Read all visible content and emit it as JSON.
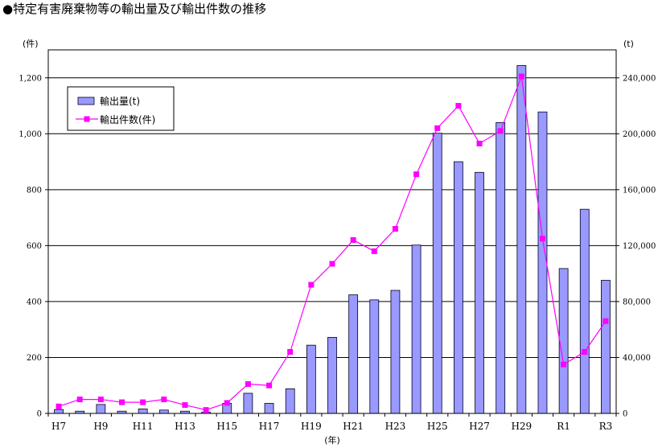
{
  "title": "●特定有害廃棄物等の輸出量及び輸出件数の推移",
  "chart_data": {
    "type": "bar+line",
    "categories": [
      "H7",
      "H8",
      "H9",
      "H10",
      "H11",
      "H12",
      "H13",
      "H14",
      "H15",
      "H16",
      "H17",
      "H18",
      "H19",
      "H20",
      "H21",
      "H22",
      "H23",
      "H24",
      "H25",
      "H26",
      "H27",
      "H28",
      "H29",
      "H30",
      "R1",
      "R2",
      "R3"
    ],
    "x_tick_labels": [
      "H7",
      "H9",
      "H11",
      "H13",
      "H15",
      "H17",
      "H19",
      "H21",
      "H23",
      "H25",
      "H27",
      "H29",
      "R1",
      "R3"
    ],
    "x_unit": "(年)",
    "y_left": {
      "unit": "(件)",
      "lim": [
        0,
        1300
      ],
      "ticks": [
        "0",
        "200",
        "400",
        "600",
        "800",
        "1,000",
        "1,200"
      ]
    },
    "y_right": {
      "unit": "(t)",
      "lim": [
        0,
        260000
      ],
      "ticks": [
        "0",
        "40,000",
        "80,000",
        "120,000",
        "160,000",
        "200,000",
        "240,000"
      ]
    },
    "grid": true,
    "legend_position": "top-left",
    "series": [
      {
        "name": "輸出量(t)",
        "type": "bar",
        "axis": "left",
        "color": "#9999ff",
        "values": [
          14,
          8,
          32,
          8,
          16,
          12,
          8,
          4,
          36,
          72,
          36,
          88,
          244,
          272,
          424,
          406,
          440,
          602,
          1002,
          900,
          862,
          1040,
          1244,
          1078,
          518,
          730,
          476
        ]
      },
      {
        "name": "輸出件数(件)",
        "type": "line",
        "axis": "right",
        "color": "#ff00ff",
        "values": [
          5000,
          10000,
          10000,
          8000,
          8000,
          10000,
          6000,
          2500,
          7500,
          21000,
          20000,
          44000,
          92000,
          107000,
          124000,
          116000,
          132000,
          171000,
          204000,
          220000,
          193000,
          202000,
          241000,
          125000,
          35000,
          44000,
          66000
        ]
      }
    ]
  }
}
